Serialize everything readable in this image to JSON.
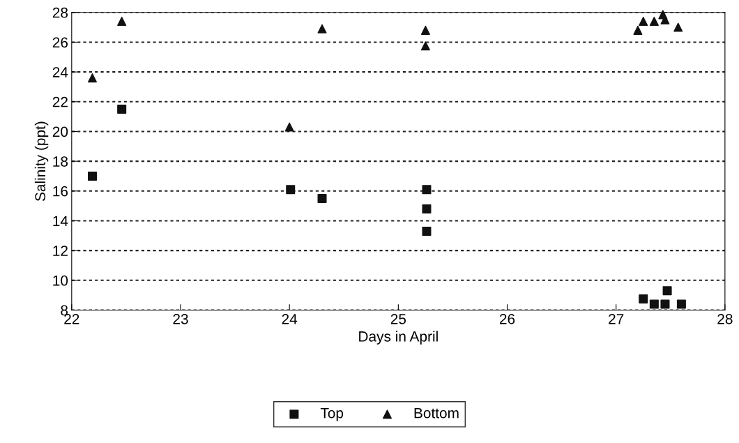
{
  "chart_data": {
    "type": "scatter",
    "xlabel": "Days in April",
    "ylabel": "Salinity (ppt)",
    "xlim": [
      22,
      28
    ],
    "xticks": [
      22,
      23,
      24,
      25,
      26,
      27,
      28
    ],
    "ylim": [
      8,
      28
    ],
    "yticks": [
      8,
      10,
      12,
      14,
      16,
      18,
      20,
      22,
      24,
      26,
      28
    ],
    "grid": "y",
    "legend": "bottom",
    "series": [
      {
        "name": "Top",
        "color": "#111111",
        "marker": "square",
        "x": [
          22.19,
          22.46,
          24.01,
          24.3,
          25.26,
          25.26,
          25.26,
          27.25,
          27.35,
          27.45,
          27.47,
          27.6
        ],
        "values": [
          17.0,
          21.5,
          16.1,
          15.5,
          16.1,
          14.8,
          13.3,
          8.75,
          8.4,
          8.4,
          9.3,
          8.4
        ]
      },
      {
        "name": "Bottom",
        "color": "#111111",
        "marker": "triangle",
        "x": [
          22.19,
          22.46,
          24.0,
          24.3,
          25.25,
          25.25,
          27.2,
          27.25,
          27.35,
          27.43,
          27.45,
          27.57
        ],
        "values": [
          23.6,
          27.4,
          20.3,
          26.9,
          26.8,
          25.75,
          26.8,
          27.4,
          27.4,
          27.85,
          27.5,
          27.0
        ]
      }
    ]
  }
}
